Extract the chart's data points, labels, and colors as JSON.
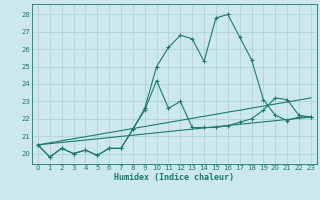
{
  "title": "",
  "xlabel": "Humidex (Indice chaleur)",
  "bg_color": "#cce8ec",
  "grid_color": "#aacfd4",
  "line_color": "#1a7a6e",
  "xlim": [
    -0.5,
    23.5
  ],
  "ylim": [
    19.4,
    28.6
  ],
  "xticks": [
    0,
    1,
    2,
    3,
    4,
    5,
    6,
    7,
    8,
    9,
    10,
    11,
    12,
    13,
    14,
    15,
    16,
    17,
    18,
    19,
    20,
    21,
    22,
    23
  ],
  "yticks": [
    20,
    21,
    22,
    23,
    24,
    25,
    26,
    27,
    28
  ],
  "series": [
    {
      "x": [
        0,
        1,
        2,
        3,
        4,
        5,
        6,
        7,
        8,
        9,
        10,
        11,
        12,
        13,
        14,
        15,
        16,
        17,
        18,
        19,
        20,
        21,
        22,
        23
      ],
      "y": [
        20.5,
        19.8,
        20.3,
        20.0,
        20.2,
        19.9,
        20.3,
        20.3,
        21.4,
        22.6,
        25.0,
        26.1,
        26.8,
        26.6,
        25.3,
        27.8,
        28.0,
        26.7,
        25.4,
        23.1,
        22.2,
        21.9,
        22.1,
        22.1
      ],
      "marker": true
    },
    {
      "x": [
        0,
        1,
        2,
        3,
        4,
        5,
        6,
        7,
        8,
        9,
        10,
        11,
        12,
        13,
        14,
        15,
        16,
        17,
        18,
        19,
        20,
        21,
        22,
        23
      ],
      "y": [
        20.5,
        19.8,
        20.3,
        20.0,
        20.2,
        19.9,
        20.3,
        20.3,
        21.4,
        22.5,
        24.2,
        22.6,
        23.0,
        21.5,
        21.5,
        21.5,
        21.6,
        21.8,
        22.0,
        22.5,
        23.2,
        23.1,
        22.2,
        22.1
      ],
      "marker": true
    },
    {
      "x": [
        0,
        23
      ],
      "y": [
        20.5,
        22.1
      ],
      "marker": false
    },
    {
      "x": [
        0,
        23
      ],
      "y": [
        20.5,
        23.2
      ],
      "marker": false
    }
  ]
}
